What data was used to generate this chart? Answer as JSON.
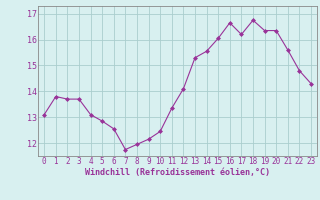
{
  "x": [
    0,
    1,
    2,
    3,
    4,
    5,
    6,
    7,
    8,
    9,
    10,
    11,
    12,
    13,
    14,
    15,
    16,
    17,
    18,
    19,
    20,
    21,
    22,
    23
  ],
  "y": [
    13.1,
    13.8,
    13.7,
    13.7,
    13.1,
    12.85,
    12.55,
    11.75,
    11.95,
    12.15,
    12.45,
    13.35,
    14.1,
    15.3,
    15.55,
    16.05,
    16.65,
    16.2,
    16.75,
    16.35,
    16.35,
    15.6,
    14.8,
    14.3
  ],
  "line_color": "#993399",
  "marker": "D",
  "marker_size": 2,
  "bg_color": "#d8f0f0",
  "grid_color": "#aacece",
  "axis_color": "#993399",
  "xlabel": "Windchill (Refroidissement éolien,°C)",
  "ylim": [
    11.5,
    17.3
  ],
  "xlim": [
    -0.5,
    23.5
  ],
  "yticks": [
    12,
    13,
    14,
    15,
    16,
    17
  ],
  "xticks": [
    0,
    1,
    2,
    3,
    4,
    5,
    6,
    7,
    8,
    9,
    10,
    11,
    12,
    13,
    14,
    15,
    16,
    17,
    18,
    19,
    20,
    21,
    22,
    23
  ],
  "tick_fontsize": 5.5,
  "xlabel_fontsize": 6.0,
  "ytick_fontsize": 6.0
}
